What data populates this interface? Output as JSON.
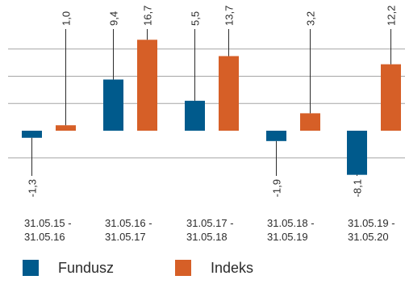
{
  "chart_data": {
    "type": "bar",
    "categories": [
      [
        "31.05.15 -",
        "31.05.16"
      ],
      [
        "31.05.16 -",
        "31.05.17"
      ],
      [
        "31.05.17 -",
        "31.05.18"
      ],
      [
        "31.05.18 -",
        "31.05.19"
      ],
      [
        "31.05.19 -",
        "31.05.20"
      ]
    ],
    "series": [
      {
        "name": "Fundusz",
        "color": "#005a8c",
        "values": [
          -1.3,
          9.4,
          5.5,
          -1.9,
          -8.1
        ],
        "labels": [
          "-1,3",
          "9,4",
          "5,5",
          "-1,9",
          "-8,1"
        ]
      },
      {
        "name": "Indeks",
        "color": "#d65f27",
        "values": [
          1.0,
          16.7,
          13.7,
          3.2,
          12.2
        ],
        "labels": [
          "1,0",
          "16,7",
          "13,7",
          "3,2",
          "12,2"
        ]
      }
    ],
    "title": "",
    "xlabel": "",
    "ylabel": "",
    "ylim": [
      -10,
      20
    ],
    "grid": true,
    "legend": "bottom-left"
  },
  "legend": {
    "fundusz": "Fundusz",
    "indeks": "Indeks"
  }
}
